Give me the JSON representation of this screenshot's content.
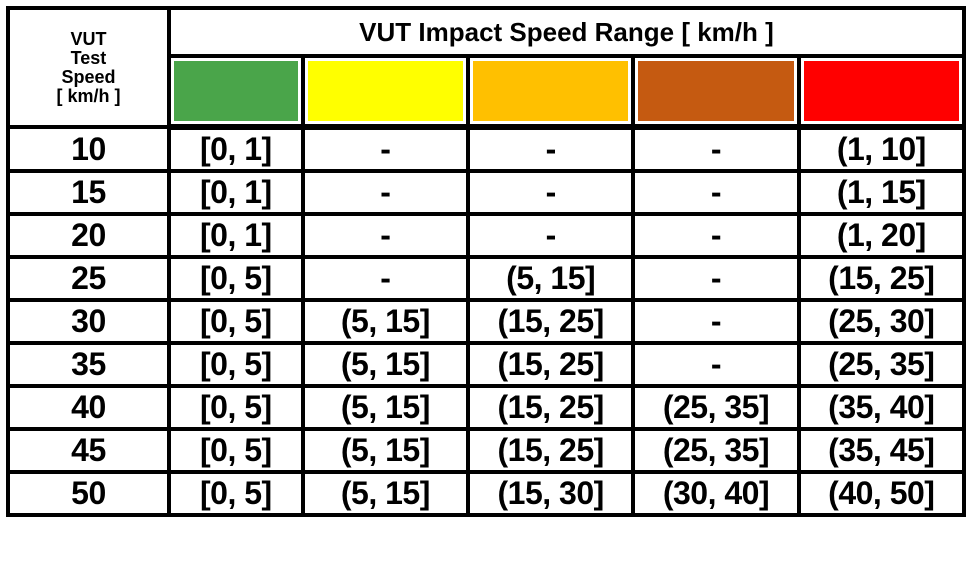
{
  "table": {
    "header_speed_lines": [
      "VUT",
      "Test",
      "Speed",
      "[ km/h ]"
    ],
    "header_title": "VUT Impact Speed Range [ km/h ]",
    "colors": [
      "#4aa54a",
      "#ffff00",
      "#ffc000",
      "#c55a11",
      "#ff0000"
    ],
    "rows": [
      {
        "speed": "10",
        "ranges": [
          "[0, 1]",
          "-",
          "-",
          "-",
          "(1, 10]"
        ]
      },
      {
        "speed": "15",
        "ranges": [
          "[0, 1]",
          "-",
          "-",
          "-",
          "(1, 15]"
        ]
      },
      {
        "speed": "20",
        "ranges": [
          "[0, 1]",
          "-",
          "-",
          "-",
          "(1, 20]"
        ]
      },
      {
        "speed": "25",
        "ranges": [
          "[0, 5]",
          "-",
          "(5, 15]",
          "-",
          "(15, 25]"
        ]
      },
      {
        "speed": "30",
        "ranges": [
          "[0, 5]",
          "(5, 15]",
          "(15, 25]",
          "-",
          "(25, 30]"
        ]
      },
      {
        "speed": "35",
        "ranges": [
          "[0, 5]",
          "(5, 15]",
          "(15, 25]",
          "-",
          "(25, 35]"
        ]
      },
      {
        "speed": "40",
        "ranges": [
          "[0, 5]",
          "(5, 15]",
          "(15, 25]",
          "(25, 35]",
          "(35, 40]"
        ]
      },
      {
        "speed": "45",
        "ranges": [
          "[0, 5]",
          "(5, 15]",
          "(15, 25]",
          "(25, 35]",
          "(35, 45]"
        ]
      },
      {
        "speed": "50",
        "ranges": [
          "[0,  5]",
          "(5, 15]",
          "(15, 30]",
          "(30, 40]",
          "(40, 50]"
        ]
      }
    ]
  }
}
